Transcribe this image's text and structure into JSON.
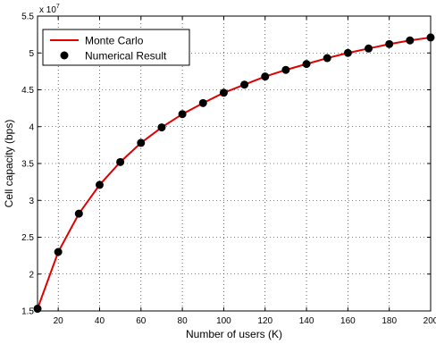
{
  "chart_data": {
    "type": "line",
    "title": "",
    "xlabel": "Number of users (K)",
    "ylabel": "Cell capacity (bps)",
    "y_scale_label": "x 10",
    "y_scale_exponent": "7",
    "xlim": [
      10,
      200
    ],
    "ylim": [
      1.5,
      5.5
    ],
    "grid": true,
    "legend_position": "top-left",
    "x_ticks": [
      20,
      40,
      60,
      80,
      100,
      120,
      140,
      160,
      180,
      200
    ],
    "x_tick_labels": [
      "20",
      "40",
      "60",
      "80",
      "100",
      "120",
      "140",
      "160",
      "180",
      "200"
    ],
    "y_ticks": [
      1.5,
      2,
      2.5,
      3,
      3.5,
      4,
      4.5,
      5,
      5.5
    ],
    "y_tick_labels": [
      "1.5",
      "2",
      "2.5",
      "3",
      "3.5",
      "4",
      "4.5",
      "5",
      "5.5"
    ],
    "x": [
      10,
      20,
      30,
      40,
      50,
      60,
      70,
      80,
      90,
      100,
      110,
      120,
      130,
      140,
      150,
      160,
      170,
      180,
      190,
      200
    ],
    "series": [
      {
        "name": "Monte Carlo",
        "style": "line",
        "color": "#e00000",
        "values": [
          1.53,
          2.3,
          2.82,
          3.21,
          3.52,
          3.78,
          3.99,
          4.17,
          4.32,
          4.46,
          4.57,
          4.68,
          4.77,
          4.85,
          4.93,
          5.0,
          5.06,
          5.12,
          5.17,
          5.21
        ]
      },
      {
        "name": "Numerical Result",
        "style": "marker",
        "color": "#000000",
        "values": [
          1.53,
          2.3,
          2.82,
          3.21,
          3.52,
          3.78,
          3.99,
          4.17,
          4.32,
          4.46,
          4.57,
          4.68,
          4.77,
          4.85,
          4.93,
          5.0,
          5.06,
          5.12,
          5.17,
          5.21
        ]
      }
    ]
  }
}
